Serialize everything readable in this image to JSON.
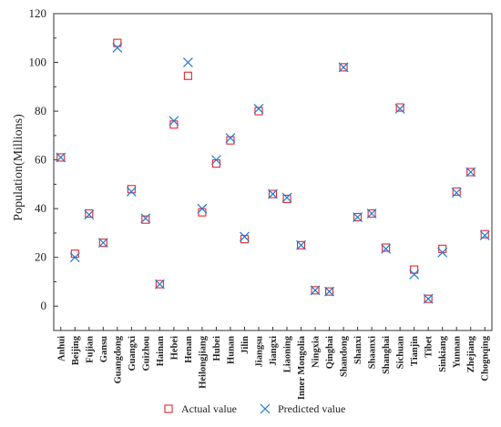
{
  "chart_data": {
    "type": "scatter",
    "title": "",
    "xlabel": "",
    "ylabel": "Population(Millions)",
    "ylim": [
      -10,
      120
    ],
    "yticks": [
      0,
      20,
      40,
      60,
      80,
      100,
      120
    ],
    "grid": false,
    "legend_placement": "bottom-center",
    "categories": [
      "Anhui",
      "Beijing",
      "Fujian",
      "Gansu",
      "Guangdong",
      "Guangxi",
      "Guizhou",
      "Hainan",
      "Hebei",
      "Henan",
      "Heilongjiang",
      "Hubei",
      "Hunan",
      "Jilin",
      "Jiangsu",
      "Jiangxi",
      "Liaoning",
      "Inner Mongolia",
      "Ningxia",
      "Qinghai",
      "Shandong",
      "Shanxi",
      "Shaanxi",
      "Shanghai",
      "Sichuan",
      "Tianjin",
      "Tibet",
      "Sinkiang",
      "Yunnan",
      "Zhejiang",
      "Chognqing"
    ],
    "series": [
      {
        "name": "Actual value",
        "marker": "square",
        "color": "#e8262a",
        "values": [
          61,
          21.5,
          38,
          26,
          108,
          48,
          35.5,
          9,
          74.5,
          94.5,
          38.5,
          58.5,
          68,
          27.5,
          80,
          46,
          44,
          25,
          6.5,
          6,
          98,
          36.5,
          38,
          24,
          81.5,
          15,
          3,
          23.5,
          47,
          55,
          29.5
        ]
      },
      {
        "name": "Predicted value",
        "marker": "x",
        "color": "#1f7ad1",
        "values": [
          61,
          20,
          37.5,
          26,
          106,
          47,
          36,
          9,
          76,
          100,
          40,
          60,
          69,
          28.5,
          81,
          46,
          44.5,
          25,
          6.5,
          6,
          98,
          36.5,
          38,
          23.5,
          81,
          13,
          3,
          22,
          46.5,
          55,
          29
        ]
      }
    ]
  }
}
